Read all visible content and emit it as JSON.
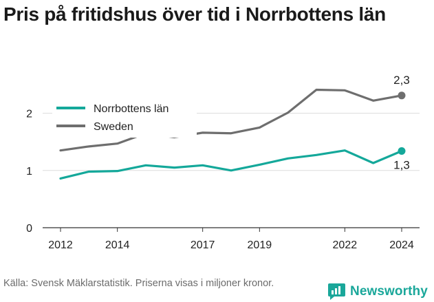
{
  "title": "Pris på fritidshus över tid i Norrbottens län",
  "source": "Källa: Svensk Mäklarstatistik. Priserna visas i miljoner kronor.",
  "brand": {
    "name": "Newsworthy",
    "icon": "newsworthy-logo-icon",
    "color": "#1aa79a"
  },
  "chart_data": {
    "type": "line",
    "x": [
      2012,
      2013,
      2014,
      2015,
      2016,
      2017,
      2018,
      2019,
      2020,
      2021,
      2022,
      2023,
      2024
    ],
    "x_ticks": [
      "2012",
      "2014",
      "2017",
      "2019",
      "2022",
      "2024"
    ],
    "y_ticks": [
      "0",
      "1",
      "2"
    ],
    "ylim": [
      0,
      2.5
    ],
    "grid": true,
    "legend_position": "top-left",
    "series": [
      {
        "name": "Norrbottens län",
        "color": "#14a89a",
        "values": [
          0.86,
          0.98,
          0.99,
          1.09,
          1.05,
          1.09,
          1.0,
          1.1,
          1.21,
          1.27,
          1.35,
          1.13,
          1.34
        ],
        "end_label": "1,3"
      },
      {
        "name": "Sweden",
        "color": "#6e6e6e",
        "values": [
          1.35,
          1.42,
          1.47,
          1.65,
          1.58,
          1.66,
          1.65,
          1.75,
          2.01,
          2.41,
          2.4,
          2.22,
          2.31
        ],
        "end_label": "2,3"
      }
    ]
  }
}
